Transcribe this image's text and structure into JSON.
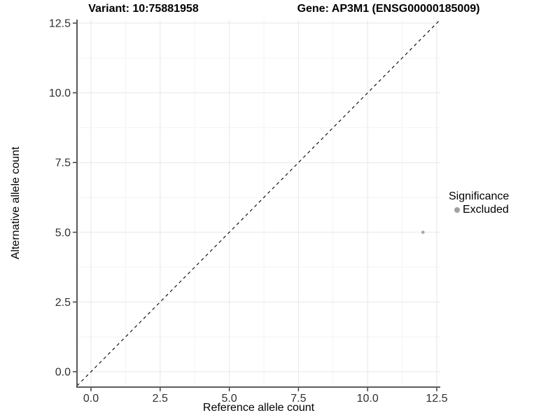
{
  "titles": {
    "left": "Variant: 10:75881958",
    "right": "Gene: AP3M1 (ENSG00000185009)"
  },
  "legend": {
    "title": "Significance",
    "items": [
      {
        "label": "Excluded",
        "color": "#a1a1a1"
      }
    ]
  },
  "colors": {
    "background": "#ffffff",
    "grid_major": "#e7e7e7",
    "grid_minor": "#f3f3f3",
    "axis_line": "#464646",
    "tick_mark": "#333333",
    "tick_label": "#303030",
    "point": "#a8a8a8",
    "reference_line": "#000000"
  },
  "chart_data": {
    "type": "scatter",
    "title_left": "Variant: 10:75881958",
    "title_right": "Gene: AP3M1 (ENSG00000185009)",
    "xlabel": "Reference allele count",
    "ylabel": "Alternative allele count",
    "xlim": [
      -0.506,
      12.627
    ],
    "ylim": [
      -0.552,
      12.626
    ],
    "x_tick_values": [
      0,
      2.5,
      5,
      7.5,
      10,
      12.5
    ],
    "x_tick_labels": [
      "0.0",
      "2.5",
      "5.0",
      "7.5",
      "10.0",
      "12.5"
    ],
    "y_tick_values": [
      0,
      2.5,
      5,
      7.5,
      10,
      12.5
    ],
    "y_tick_labels": [
      "0.0",
      "2.5",
      "5.0",
      "7.5",
      "10.0",
      "12.5"
    ],
    "grid": "major+minor",
    "legend_position": "right",
    "series": [
      {
        "name": "Excluded",
        "color": "#a8a8a8",
        "points": [
          {
            "x": 12,
            "y": 5
          }
        ]
      }
    ],
    "reference_line": {
      "kind": "identity y=x",
      "style": "dashed",
      "color": "#000000"
    }
  }
}
